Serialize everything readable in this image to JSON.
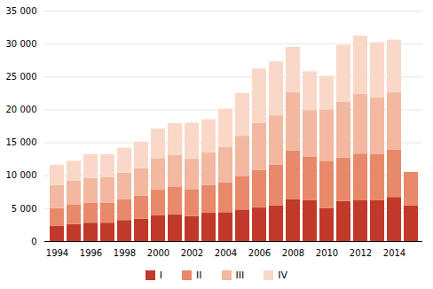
{
  "chart_data": {
    "type": "bar",
    "stacked": true,
    "grid": true,
    "legend": "bottom",
    "categories": [
      "1994",
      null,
      "1996",
      null,
      "1998",
      null,
      "2000",
      null,
      "2002",
      null,
      "2004",
      null,
      "2006",
      null,
      "2008",
      null,
      "2010",
      null,
      "2012",
      null,
      "2014",
      null
    ],
    "series": [
      {
        "name": "I",
        "color": "#c0392b",
        "values": [
          2300,
          2600,
          2800,
          2800,
          3200,
          3400,
          3900,
          4100,
          3800,
          4300,
          4400,
          4800,
          5100,
          5400,
          6400,
          6200,
          5000,
          6100,
          6200,
          6200,
          6700,
          5400
        ]
      },
      {
        "name": "II",
        "color": "#e8896a",
        "values": [
          2700,
          3000,
          3000,
          3000,
          3200,
          3500,
          3900,
          4200,
          4100,
          4200,
          4500,
          5100,
          5700,
          6200,
          7400,
          6600,
          7200,
          6600,
          7100,
          7000,
          7200,
          5100
        ]
      },
      {
        "name": "III",
        "color": "#f2b8a0",
        "values": [
          3500,
          3600,
          3800,
          3900,
          4000,
          4200,
          4800,
          4800,
          4600,
          5000,
          5400,
          6100,
          7100,
          7500,
          8800,
          7100,
          7800,
          8500,
          9100,
          8600,
          8700,
          0
        ]
      },
      {
        "name": "IV",
        "color": "#fad8c8",
        "values": [
          3100,
          3000,
          3600,
          3500,
          3800,
          4000,
          4500,
          4800,
          5500,
          5000,
          5800,
          6500,
          8300,
          8200,
          6900,
          5900,
          5100,
          8600,
          8800,
          8400,
          8000,
          0
        ]
      }
    ],
    "ylim": [
      0,
      35000
    ],
    "yticks": [
      0,
      {
        "value": 5000,
        "label": "5 000"
      },
      {
        "value": 10000,
        "label": "10 000"
      },
      {
        "value": 15000,
        "label": "15 000"
      },
      {
        "value": 20000,
        "label": "20 000"
      },
      {
        "value": 25000,
        "label": "25 000"
      },
      {
        "value": 30000,
        "label": "30 000"
      },
      {
        "value": 35000,
        "label": "35 000"
      }
    ]
  }
}
